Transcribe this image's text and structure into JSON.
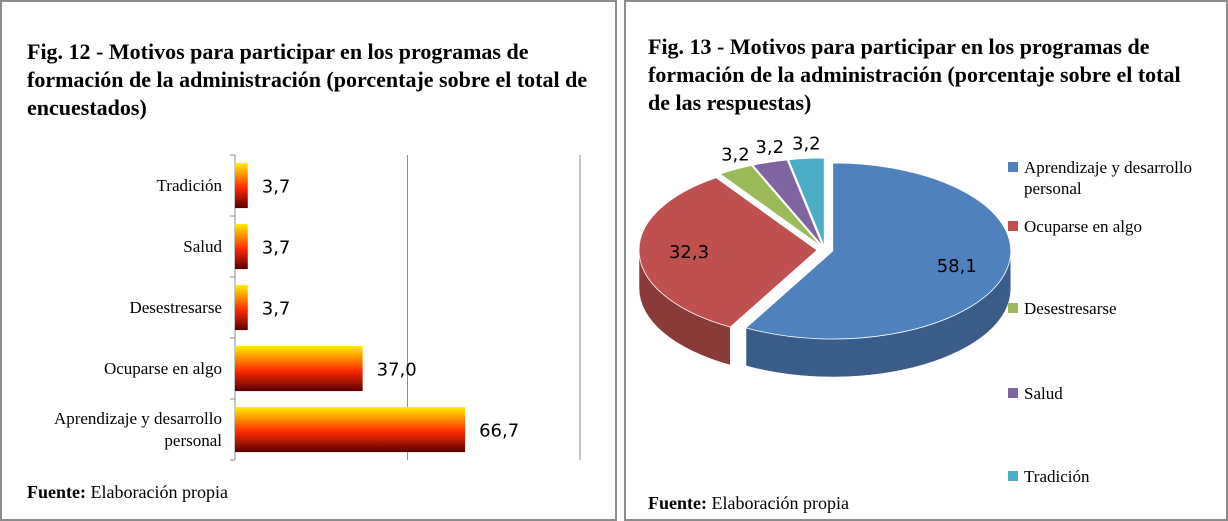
{
  "chart_data": [
    {
      "type": "hbar",
      "title": "Fig. 12 - Motivos para participar  en los programas de formación de la administración  (porcentaje sobre el total de encuestados)",
      "categories": [
        "Tradición",
        "Salud",
        "Desestresarse",
        "Ocuparse en algo",
        "Aprendizaje y desarrollo personal"
      ],
      "values": [
        3.7,
        3.7,
        3.7,
        37.0,
        66.7
      ],
      "value_labels": [
        "3,7",
        "3,7",
        "3,7",
        "37,0",
        "66,7"
      ],
      "xlim": [
        0,
        100
      ],
      "xticks": [
        0,
        50,
        100
      ],
      "grid": true,
      "colors": [
        "#ffee00",
        "#ff2a00",
        "#5a0000"
      ],
      "source": {
        "label": "Fuente:",
        "text": "Elaboración propia"
      }
    },
    {
      "type": "pie3d",
      "title": "Fig. 13 - Motivos para participar  en los programas de formación de la administración  (porcentaje sobre el total de las respuestas)",
      "categories": [
        "Aprendizaje y desarrollo personal",
        "Ocuparse en algo",
        "Desestresarse",
        "Salud",
        "Tradición"
      ],
      "values": [
        58.1,
        32.3,
        3.2,
        3.2,
        3.2
      ],
      "value_labels": [
        "58,1",
        "32,3",
        "3,2",
        "3,2",
        "3,2"
      ],
      "colors": [
        "#4f81bd",
        "#c0504d",
        "#9bbb59",
        "#8064a2",
        "#4bacc6"
      ],
      "legend": "right",
      "source": {
        "label": "Fuente:",
        "text": "Elaboración propia"
      }
    }
  ]
}
